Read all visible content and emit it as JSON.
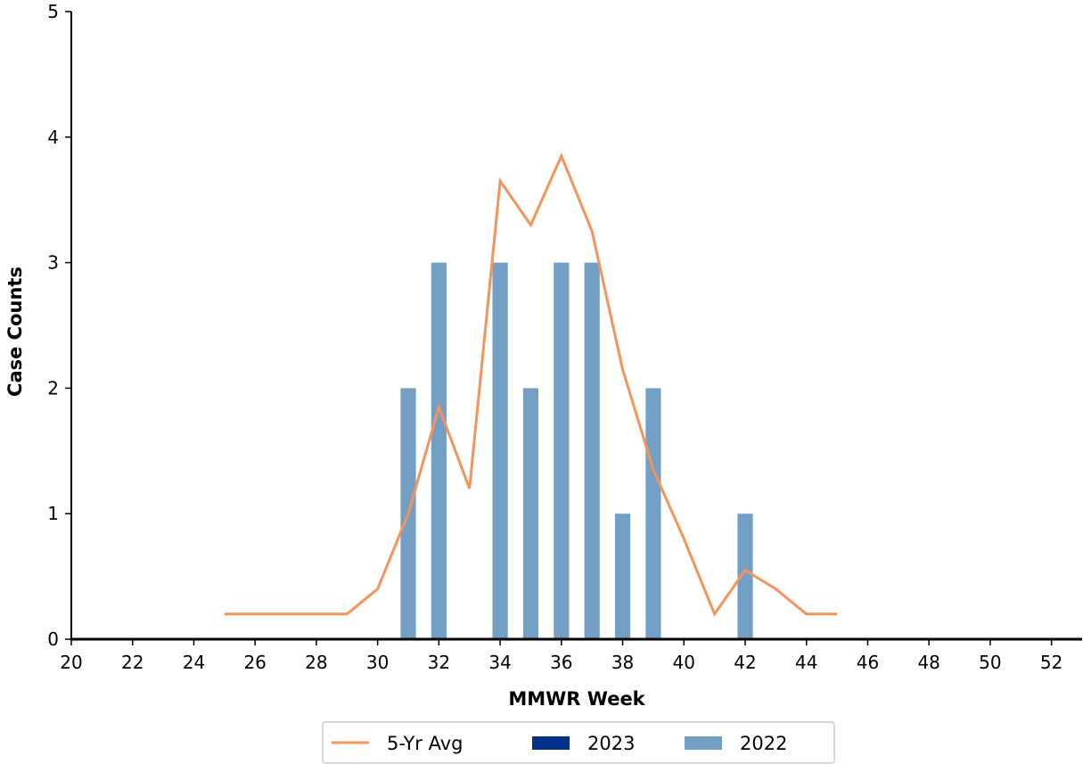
{
  "chart_data": {
    "type": "bar",
    "title": "",
    "xlabel": "MMWR Week",
    "ylabel": "Case Counts",
    "xlim": [
      20,
      53
    ],
    "ylim": [
      0,
      5
    ],
    "xticks": [
      20,
      22,
      24,
      26,
      28,
      30,
      32,
      34,
      36,
      38,
      40,
      42,
      44,
      46,
      48,
      50,
      52
    ],
    "yticks": [
      0,
      1,
      2,
      3,
      4,
      5
    ],
    "grid": false,
    "legend": {
      "placement": "bottom-center",
      "entries": [
        {
          "name": "5-Yr Avg",
          "kind": "line",
          "color": "#f4935a"
        },
        {
          "name": "2023",
          "kind": "bar",
          "color": "#003087"
        },
        {
          "name": "2022",
          "kind": "bar",
          "color": "#729fc3"
        }
      ]
    },
    "series": [
      {
        "name": "2023",
        "kind": "bar",
        "color": "#003087",
        "points": []
      },
      {
        "name": "2022",
        "kind": "bar",
        "color": "#729fc3",
        "points": [
          {
            "x": 31,
            "y": 2
          },
          {
            "x": 32,
            "y": 3
          },
          {
            "x": 34,
            "y": 3
          },
          {
            "x": 35,
            "y": 2
          },
          {
            "x": 36,
            "y": 3
          },
          {
            "x": 37,
            "y": 3
          },
          {
            "x": 38,
            "y": 1
          },
          {
            "x": 39,
            "y": 2
          },
          {
            "x": 42,
            "y": 1
          }
        ]
      },
      {
        "name": "5-Yr Avg",
        "kind": "line",
        "color": "#f4935a",
        "points": [
          {
            "x": 25,
            "y": 0.2
          },
          {
            "x": 26,
            "y": 0.2
          },
          {
            "x": 27,
            "y": 0.2
          },
          {
            "x": 28,
            "y": 0.2
          },
          {
            "x": 29,
            "y": 0.2
          },
          {
            "x": 30,
            "y": 0.4
          },
          {
            "x": 31,
            "y": 1.0
          },
          {
            "x": 32,
            "y": 1.85
          },
          {
            "x": 33,
            "y": 1.2
          },
          {
            "x": 34,
            "y": 3.65
          },
          {
            "x": 35,
            "y": 3.3
          },
          {
            "x": 36,
            "y": 3.85
          },
          {
            "x": 37,
            "y": 3.25
          },
          {
            "x": 38,
            "y": 2.15
          },
          {
            "x": 39,
            "y": 1.35
          },
          {
            "x": 40,
            "y": 0.8
          },
          {
            "x": 41,
            "y": 0.2
          },
          {
            "x": 42,
            "y": 0.55
          },
          {
            "x": 43,
            "y": 0.4
          },
          {
            "x": 44,
            "y": 0.2
          },
          {
            "x": 45,
            "y": 0.2
          }
        ]
      }
    ]
  }
}
